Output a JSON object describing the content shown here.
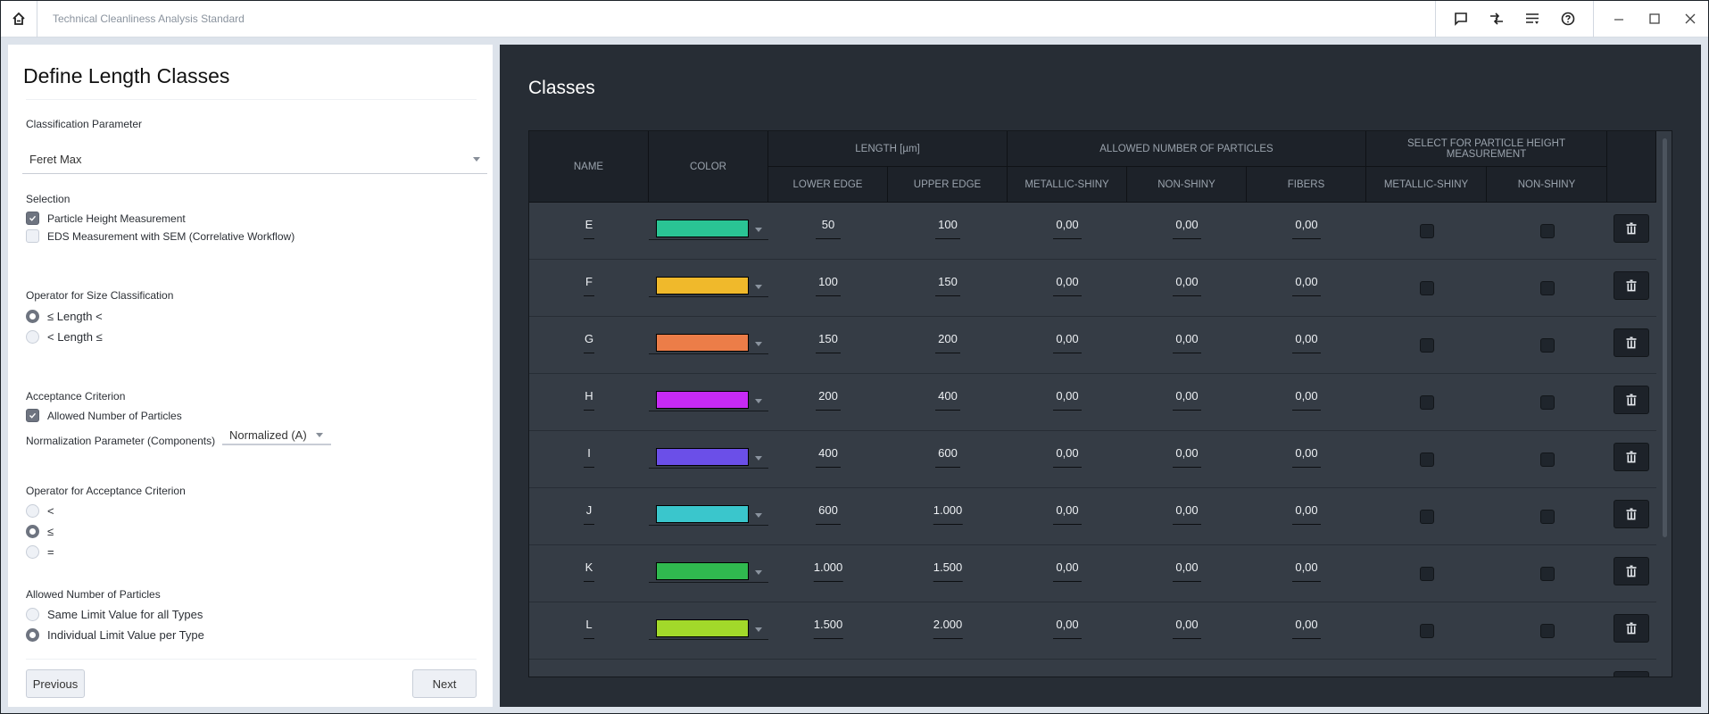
{
  "titlebar": {
    "title": "Technical Cleanliness Analysis Standard",
    "icons": [
      "home-icon",
      "comment-icon",
      "transfer-icon",
      "filter-list-icon",
      "help-icon"
    ],
    "window_controls": [
      "minimize",
      "maximize",
      "close"
    ]
  },
  "left": {
    "title": "Define Length Classes",
    "classification_parameter": {
      "label": "Classification Parameter",
      "value": "Feret Max"
    },
    "selection": {
      "label": "Selection",
      "options": [
        {
          "label": "Particle Height Measurement",
          "checked": true
        },
        {
          "label": "EDS Measurement with SEM (Correlative Workflow)",
          "checked": false
        }
      ]
    },
    "size_operator": {
      "label": "Operator for Size Classification",
      "options": [
        {
          "label": "≤ Length <",
          "selected": true
        },
        {
          "label": "< Length ≤",
          "selected": false
        }
      ]
    },
    "acceptance": {
      "label": "Acceptance Criterion",
      "checkbox_label": "Allowed Number of Particles",
      "checked": true,
      "normalization_label": "Normalization Parameter (Components)",
      "normalization_value": "Normalized (A)"
    },
    "acceptance_operator": {
      "label": "Operator for Acceptance Criterion",
      "options": [
        {
          "label": "<",
          "selected": false
        },
        {
          "label": "≤",
          "selected": true
        },
        {
          "label": "=",
          "selected": false
        }
      ]
    },
    "allowed_number": {
      "label": "Allowed Number of Particles",
      "options": [
        {
          "label": "Same Limit Value for all Types",
          "selected": false
        },
        {
          "label": "Individual Limit Value per Type",
          "selected": true
        }
      ]
    },
    "buttons": {
      "previous": "Previous",
      "next": "Next"
    }
  },
  "right": {
    "title": "Classes",
    "headers": {
      "name": "NAME",
      "color": "COLOR",
      "length": "LENGTH [µm]",
      "lower_edge": "LOWER EDGE",
      "upper_edge": "UPPER EDGE",
      "allowed": "ALLOWED NUMBER OF PARTICLES",
      "metallic": "METALLIC-SHINY",
      "nonshiny": "NON-SHINY",
      "fibers": "FIBERS",
      "height_sel": "SELECT FOR PARTICLE HEIGHT MEASUREMENT",
      "h_metallic": "METALLIC-SHINY",
      "h_nonshiny": "NON-SHINY"
    },
    "rows": [
      {
        "name": "E",
        "color": "#2ac494",
        "lower": "50",
        "upper": "100",
        "metallic": "0,00",
        "nonshiny": "0,00",
        "fibers": "0,00"
      },
      {
        "name": "F",
        "color": "#f0b92b",
        "lower": "100",
        "upper": "150",
        "metallic": "0,00",
        "nonshiny": "0,00",
        "fibers": "0,00"
      },
      {
        "name": "G",
        "color": "#ec7d48",
        "lower": "150",
        "upper": "200",
        "metallic": "0,00",
        "nonshiny": "0,00",
        "fibers": "0,00"
      },
      {
        "name": "H",
        "color": "#c72af5",
        "lower": "200",
        "upper": "400",
        "metallic": "0,00",
        "nonshiny": "0,00",
        "fibers": "0,00"
      },
      {
        "name": "I",
        "color": "#6b4fe8",
        "lower": "400",
        "upper": "600",
        "metallic": "0,00",
        "nonshiny": "0,00",
        "fibers": "0,00"
      },
      {
        "name": "J",
        "color": "#3ac6cc",
        "lower": "600",
        "upper": "1.000",
        "metallic": "0,00",
        "nonshiny": "0,00",
        "fibers": "0,00"
      },
      {
        "name": "K",
        "color": "#30b94f",
        "lower": "1.000",
        "upper": "1.500",
        "metallic": "0,00",
        "nonshiny": "0,00",
        "fibers": "0,00"
      },
      {
        "name": "L",
        "color": "#a2d92a",
        "lower": "1.500",
        "upper": "2.000",
        "metallic": "0,00",
        "nonshiny": "0,00",
        "fibers": "0,00"
      }
    ]
  }
}
